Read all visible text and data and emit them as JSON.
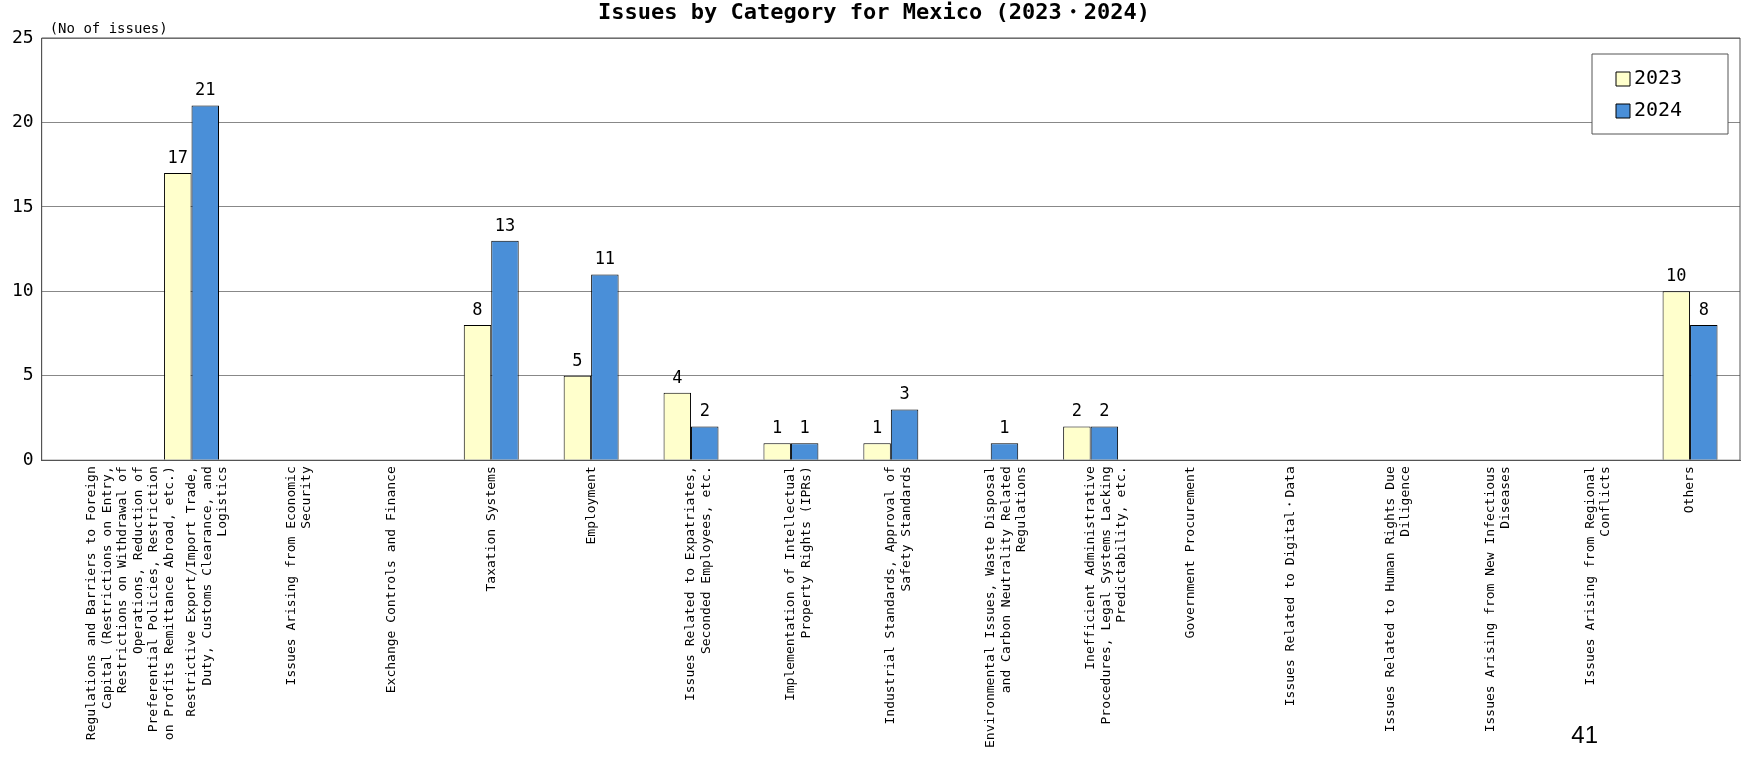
{
  "chart_data": {
    "type": "bar",
    "title": "Issues by Category for Mexico (2023・2024)",
    "ylabel": "(No of issues)",
    "categories": [
      "Regulations and Barriers to Foreign Capital (Restrictions on Entry, Restrictions on Withdrawal of Operations, Reduction of Preferential Policies, Restriction on Profits Remittance Abroad, etc.)",
      "Restrictive Export/Import Trade, Duty, Customs Clearance, and Logistics",
      "Issues Arising from Economic Security",
      "Exchange Controls and Finance",
      "Taxation Systems",
      "Employment",
      "Issues Related to Expatriates, Seconded Employees, etc.",
      "Implementation of Intellectual Property Rights (IPRs)",
      "Industrial Standards, Approval of Safety Standards",
      "Environmental Issues, Waste Disposal and Carbon Neutrality Related Regulations",
      "Inefficient Administrative Procedures, Legal Systems Lacking Predictability, etc.",
      "Government Procurement",
      "Issues Related to Digital・Data",
      "Issues Related to Human Rights Due Diligence",
      "Issues Arising from New Infectious Diseases",
      "Issues Arising from Regional Conflicts",
      "Others"
    ],
    "series": [
      {
        "name": "2023",
        "color": "#ffffcc",
        "values": [
          0,
          17,
          0,
          0,
          8,
          5,
          4,
          1,
          1,
          0,
          2,
          0,
          0,
          0,
          0,
          0,
          10
        ],
        "value_labels": [
          null,
          "17",
          null,
          null,
          "8",
          "5",
          "4",
          "1",
          "1",
          null,
          "2",
          null,
          null,
          null,
          null,
          null,
          "10"
        ]
      },
      {
        "name": "2024",
        "color": "#4a8fd8",
        "values": [
          0,
          21,
          0,
          0,
          13,
          11,
          2,
          1,
          3,
          1,
          2,
          0,
          0,
          0,
          0,
          0,
          8
        ],
        "value_labels": [
          null,
          "21",
          null,
          null,
          "13",
          "11",
          "2",
          "1",
          "3",
          "1",
          "2",
          null,
          null,
          null,
          null,
          null,
          "8"
        ]
      }
    ],
    "ylim": [
      0,
      25
    ],
    "yticks": [
      0,
      5,
      10,
      15,
      20,
      25
    ],
    "grid": "y",
    "legend": "top right",
    "annotations": [
      "41"
    ]
  }
}
